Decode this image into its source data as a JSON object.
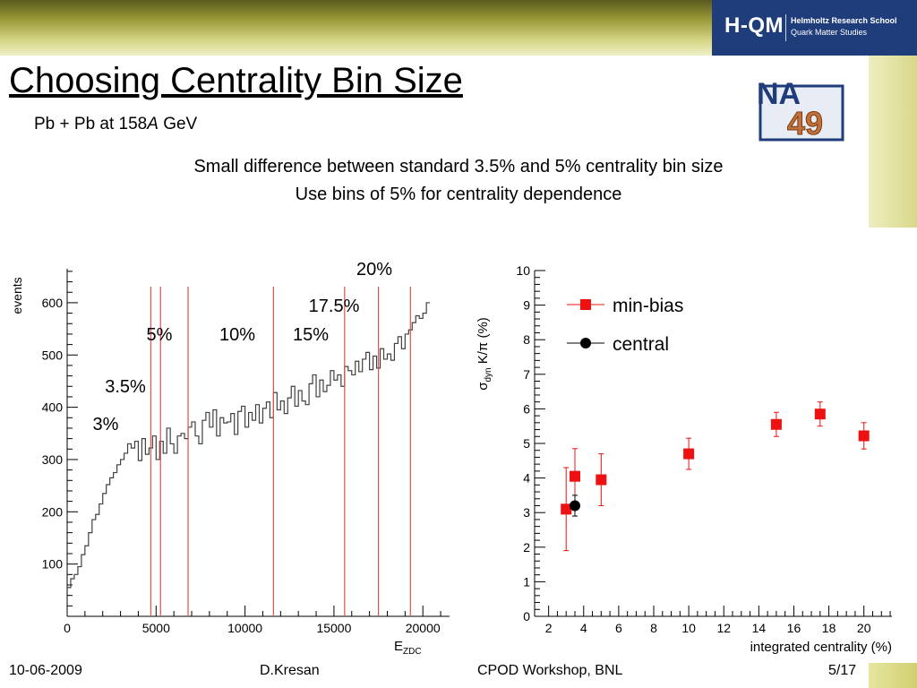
{
  "header": {
    "logo_main": "H-QM",
    "logo_line1": "Helmholtz Research School",
    "logo_line2": "Quark Matter Studies"
  },
  "slide": {
    "title": "Choosing Centrality Bin Size",
    "subtitle_prefix": "Pb + Pb at 158",
    "subtitle_italic": "A",
    "subtitle_suffix": " GeV",
    "line1": "Small difference between standard 3.5% and 5% centrality bin size",
    "line2": "Use bins of 5% for centrality dependence",
    "na49_logo_top": "NA",
    "na49_logo_bottom": "49"
  },
  "footer": {
    "date": "10-06-2009",
    "author": "D.Kresan",
    "event": "CPOD Workshop, BNL",
    "page": "5/17"
  },
  "colors": {
    "header_blue": "#1f3d7a",
    "histogram_line": "#404040",
    "bin_edge_line": "#e05050",
    "min_bias_marker": "#ee1111",
    "central_marker": "#000000"
  },
  "chart_data": [
    {
      "type": "histogram",
      "xlabel_main": "E",
      "xlabel_sub": "ZDC",
      "ylabel": "events",
      "xlim": [
        0,
        21500
      ],
      "ylim": [
        0,
        665
      ],
      "xticks": [
        0,
        5000,
        10000,
        15000,
        20000
      ],
      "yticks": [
        100,
        200,
        300,
        400,
        500,
        600
      ],
      "histogram": {
        "bin_width": 200,
        "values": [
          55,
          72,
          80,
          95,
          118,
          135,
          160,
          185,
          195,
          215,
          235,
          252,
          265,
          275,
          290,
          300,
          312,
          330,
          322,
          335,
          298,
          340,
          310,
          322,
          345,
          300,
          335,
          312,
          360,
          330,
          312,
          345,
          350,
          340,
          362,
          372,
          345,
          330,
          375,
          390,
          362,
          395,
          345,
          380,
          370,
          372,
          388,
          348,
          392,
          402,
          362,
          390,
          375,
          405,
          370,
          398,
          410,
          380,
          428,
          395,
          412,
          388,
          418,
          440,
          402,
          432,
          412,
          405,
          445,
          462,
          420,
          452,
          430,
          442,
          470,
          452,
          462,
          440,
          478,
          470,
          462,
          488,
          468,
          492,
          505,
          472,
          498,
          475,
          512,
          492,
          502,
          490,
          522,
          535,
          512,
          540,
          548,
          562,
          575,
          570,
          580,
          600
        ]
      },
      "bin_edges": [
        {
          "label": "3%",
          "x": 4700
        },
        {
          "label": "3.5%",
          "x": 5250
        },
        {
          "label": "5%",
          "x": 6800
        },
        {
          "label": "10%",
          "x": 11600
        },
        {
          "label": "15%",
          "x": 15600
        },
        {
          "label": "17.5%",
          "x": 17500
        },
        {
          "label": "20%",
          "x": 19300
        }
      ]
    },
    {
      "type": "scatter",
      "xlabel": "integrated centrality (%)",
      "ylabel": "σdyn K/π (%)",
      "ylabel_symbol": "σ",
      "ylabel_sub": "dyn",
      "ylabel_rest": " K/π (%)",
      "xlim": [
        1.2,
        21.6
      ],
      "ylim": [
        0,
        10
      ],
      "xticks": [
        2,
        4,
        6,
        8,
        10,
        12,
        14,
        16,
        18,
        20
      ],
      "yticks": [
        0,
        1,
        2,
        3,
        4,
        5,
        6,
        7,
        8,
        9,
        10
      ],
      "legend_position": "top-left",
      "series": [
        {
          "name": "min-bias",
          "marker": "square",
          "color": "#ee1111",
          "points": [
            {
              "x": 3,
              "y": 3.1,
              "err": 1.2
            },
            {
              "x": 3.5,
              "y": 4.05,
              "err": 0.8
            },
            {
              "x": 5,
              "y": 3.95,
              "err": 0.75
            },
            {
              "x": 10,
              "y": 4.7,
              "err": 0.45
            },
            {
              "x": 15,
              "y": 5.55,
              "err": 0.35
            },
            {
              "x": 17.5,
              "y": 5.85,
              "err": 0.35
            },
            {
              "x": 20,
              "y": 5.22,
              "err": 0.38
            }
          ]
        },
        {
          "name": "central",
          "marker": "circle",
          "color": "#000000",
          "points": [
            {
              "x": 3.5,
              "y": 3.2,
              "err": 0.3
            }
          ]
        }
      ]
    }
  ]
}
